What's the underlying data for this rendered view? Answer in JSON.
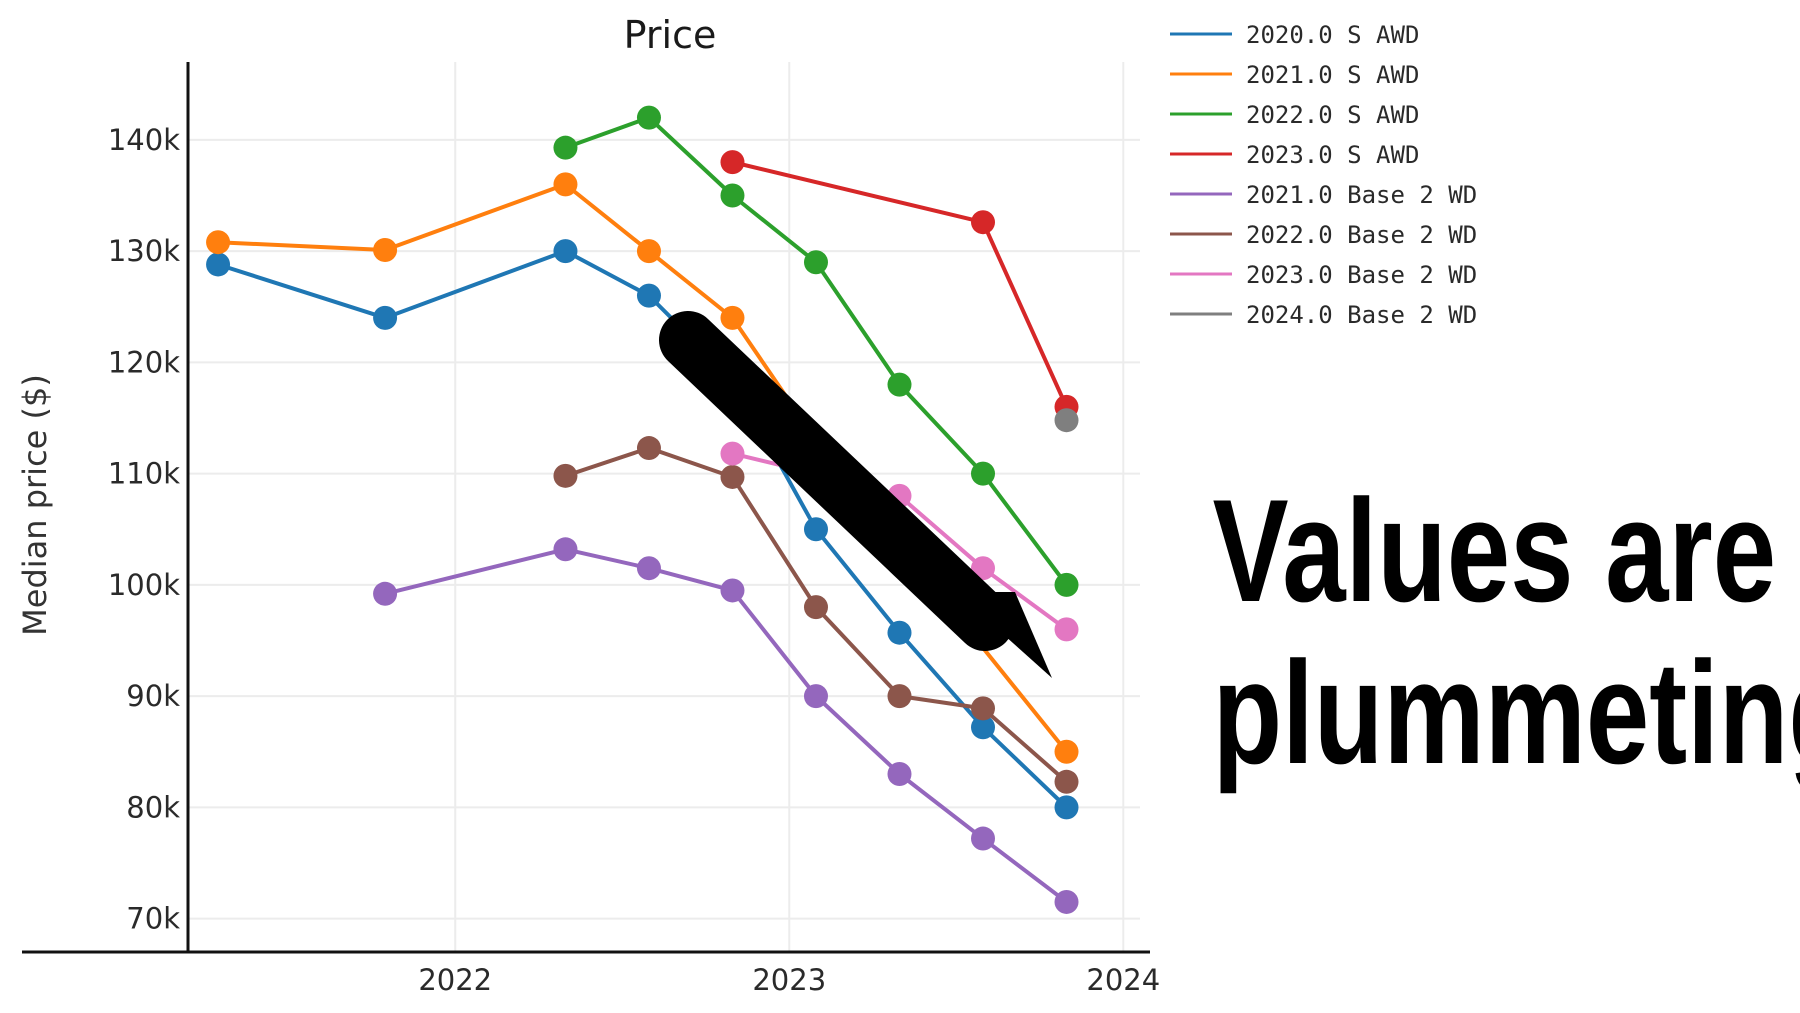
{
  "headline": {
    "line1": "Values are",
    "line2": "plummeting"
  },
  "chart_data": {
    "type": "line",
    "title": "Price",
    "xlabel": "",
    "ylabel": "Median price ($)",
    "x_ticks": [
      "2022",
      "2023",
      "2024"
    ],
    "y_ticks": [
      "70k",
      "80k",
      "90k",
      "100k",
      "110k",
      "120k",
      "130k",
      "140k"
    ],
    "xlim": [
      2021.2,
      2024.05
    ],
    "ylim": [
      67000,
      147000
    ],
    "grid": true,
    "legend_placement": "top-right",
    "series": [
      {
        "name": "2020.0 S AWD",
        "color": "#1f77b4",
        "x": [
          2021.29,
          2021.79,
          2022.33,
          2022.58,
          2022.83,
          2023.08,
          2023.33,
          2023.58,
          2023.83
        ],
        "y": [
          128800,
          124000,
          130000,
          126000,
          118500,
          105000,
          95700,
          87200,
          80000
        ]
      },
      {
        "name": "2021.0 S AWD",
        "color": "#ff7f0e",
        "x": [
          2021.29,
          2021.79,
          2022.33,
          2022.58,
          2022.83,
          2023.08,
          2023.83
        ],
        "y": [
          130800,
          130100,
          136000,
          130000,
          124000,
          113000,
          85000
        ]
      },
      {
        "name": "2022.0 S AWD",
        "color": "#2ca02c",
        "x": [
          2022.33,
          2022.58,
          2022.83,
          2023.08,
          2023.33,
          2023.58,
          2023.83
        ],
        "y": [
          139300,
          142000,
          135000,
          129000,
          118000,
          110000,
          100000
        ]
      },
      {
        "name": "2023.0 S AWD",
        "color": "#d62728",
        "x": [
          2022.83,
          2023.58,
          2023.83
        ],
        "y": [
          138000,
          132600,
          116000
        ]
      },
      {
        "name": "2021.0 Base 2 WD",
        "color": "#9467bd",
        "x": [
          2021.79,
          2022.33,
          2022.58,
          2022.83,
          2023.08,
          2023.33,
          2023.58,
          2023.83
        ],
        "y": [
          99200,
          103200,
          101500,
          99500,
          90000,
          83000,
          77200,
          71500
        ]
      },
      {
        "name": "2022.0 Base 2 WD",
        "color": "#8c564b",
        "x": [
          2022.33,
          2022.58,
          2022.83,
          2023.08,
          2023.33,
          2023.58,
          2023.83
        ],
        "y": [
          109800,
          112300,
          109700,
          98000,
          90000,
          88900,
          82300
        ]
      },
      {
        "name": "2023.0 Base 2 WD",
        "color": "#e377c2",
        "x": [
          2022.83,
          2023.08,
          2023.33,
          2023.58,
          2023.83
        ],
        "y": [
          111800,
          110000,
          108000,
          101500,
          96000
        ]
      },
      {
        "name": "2024.0 Base 2 WD",
        "color": "#7f7f7f",
        "x": [
          2023.83
        ],
        "y": [
          114800
        ]
      }
    ]
  }
}
